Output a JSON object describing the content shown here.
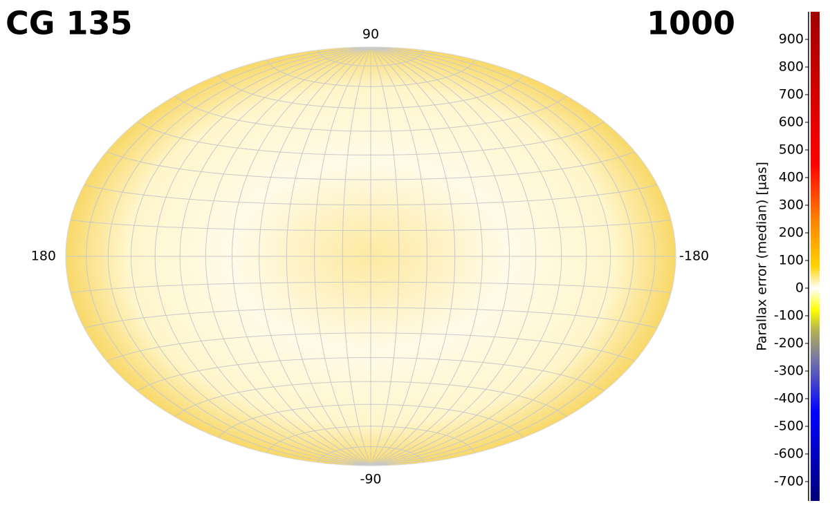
{
  "chart_data": {
    "type": "skymap",
    "projection": "hammer",
    "title": "CG 135",
    "subtitle": "1000",
    "xlim": [
      180,
      -180
    ],
    "ylim": [
      -90,
      90
    ],
    "xticks": [
      180,
      -180
    ],
    "yticks": [
      90,
      -90
    ],
    "grid": true,
    "colorbar": {
      "label": "Parallax error (median) [µas]",
      "zlim": [
        -770,
        1000
      ],
      "ticks": [
        900,
        800,
        700,
        600,
        500,
        400,
        300,
        200,
        100,
        0,
        -100,
        -200,
        -300,
        -400,
        -500,
        -600,
        -700
      ],
      "colormap": [
        {
          "value": -770,
          "color": "#00007a"
        },
        {
          "value": -450,
          "color": "#0000ff"
        },
        {
          "value": -250,
          "color": "#7a7aa0"
        },
        {
          "value": -150,
          "color": "#b4b450"
        },
        {
          "value": -80,
          "color": "#ffff00"
        },
        {
          "value": 0,
          "color": "#ffffff"
        },
        {
          "value": 80,
          "color": "#ffd200"
        },
        {
          "value": 250,
          "color": "#ff8000"
        },
        {
          "value": 450,
          "color": "#ff0000"
        },
        {
          "value": 1000,
          "color": "#a00000"
        }
      ]
    }
  }
}
